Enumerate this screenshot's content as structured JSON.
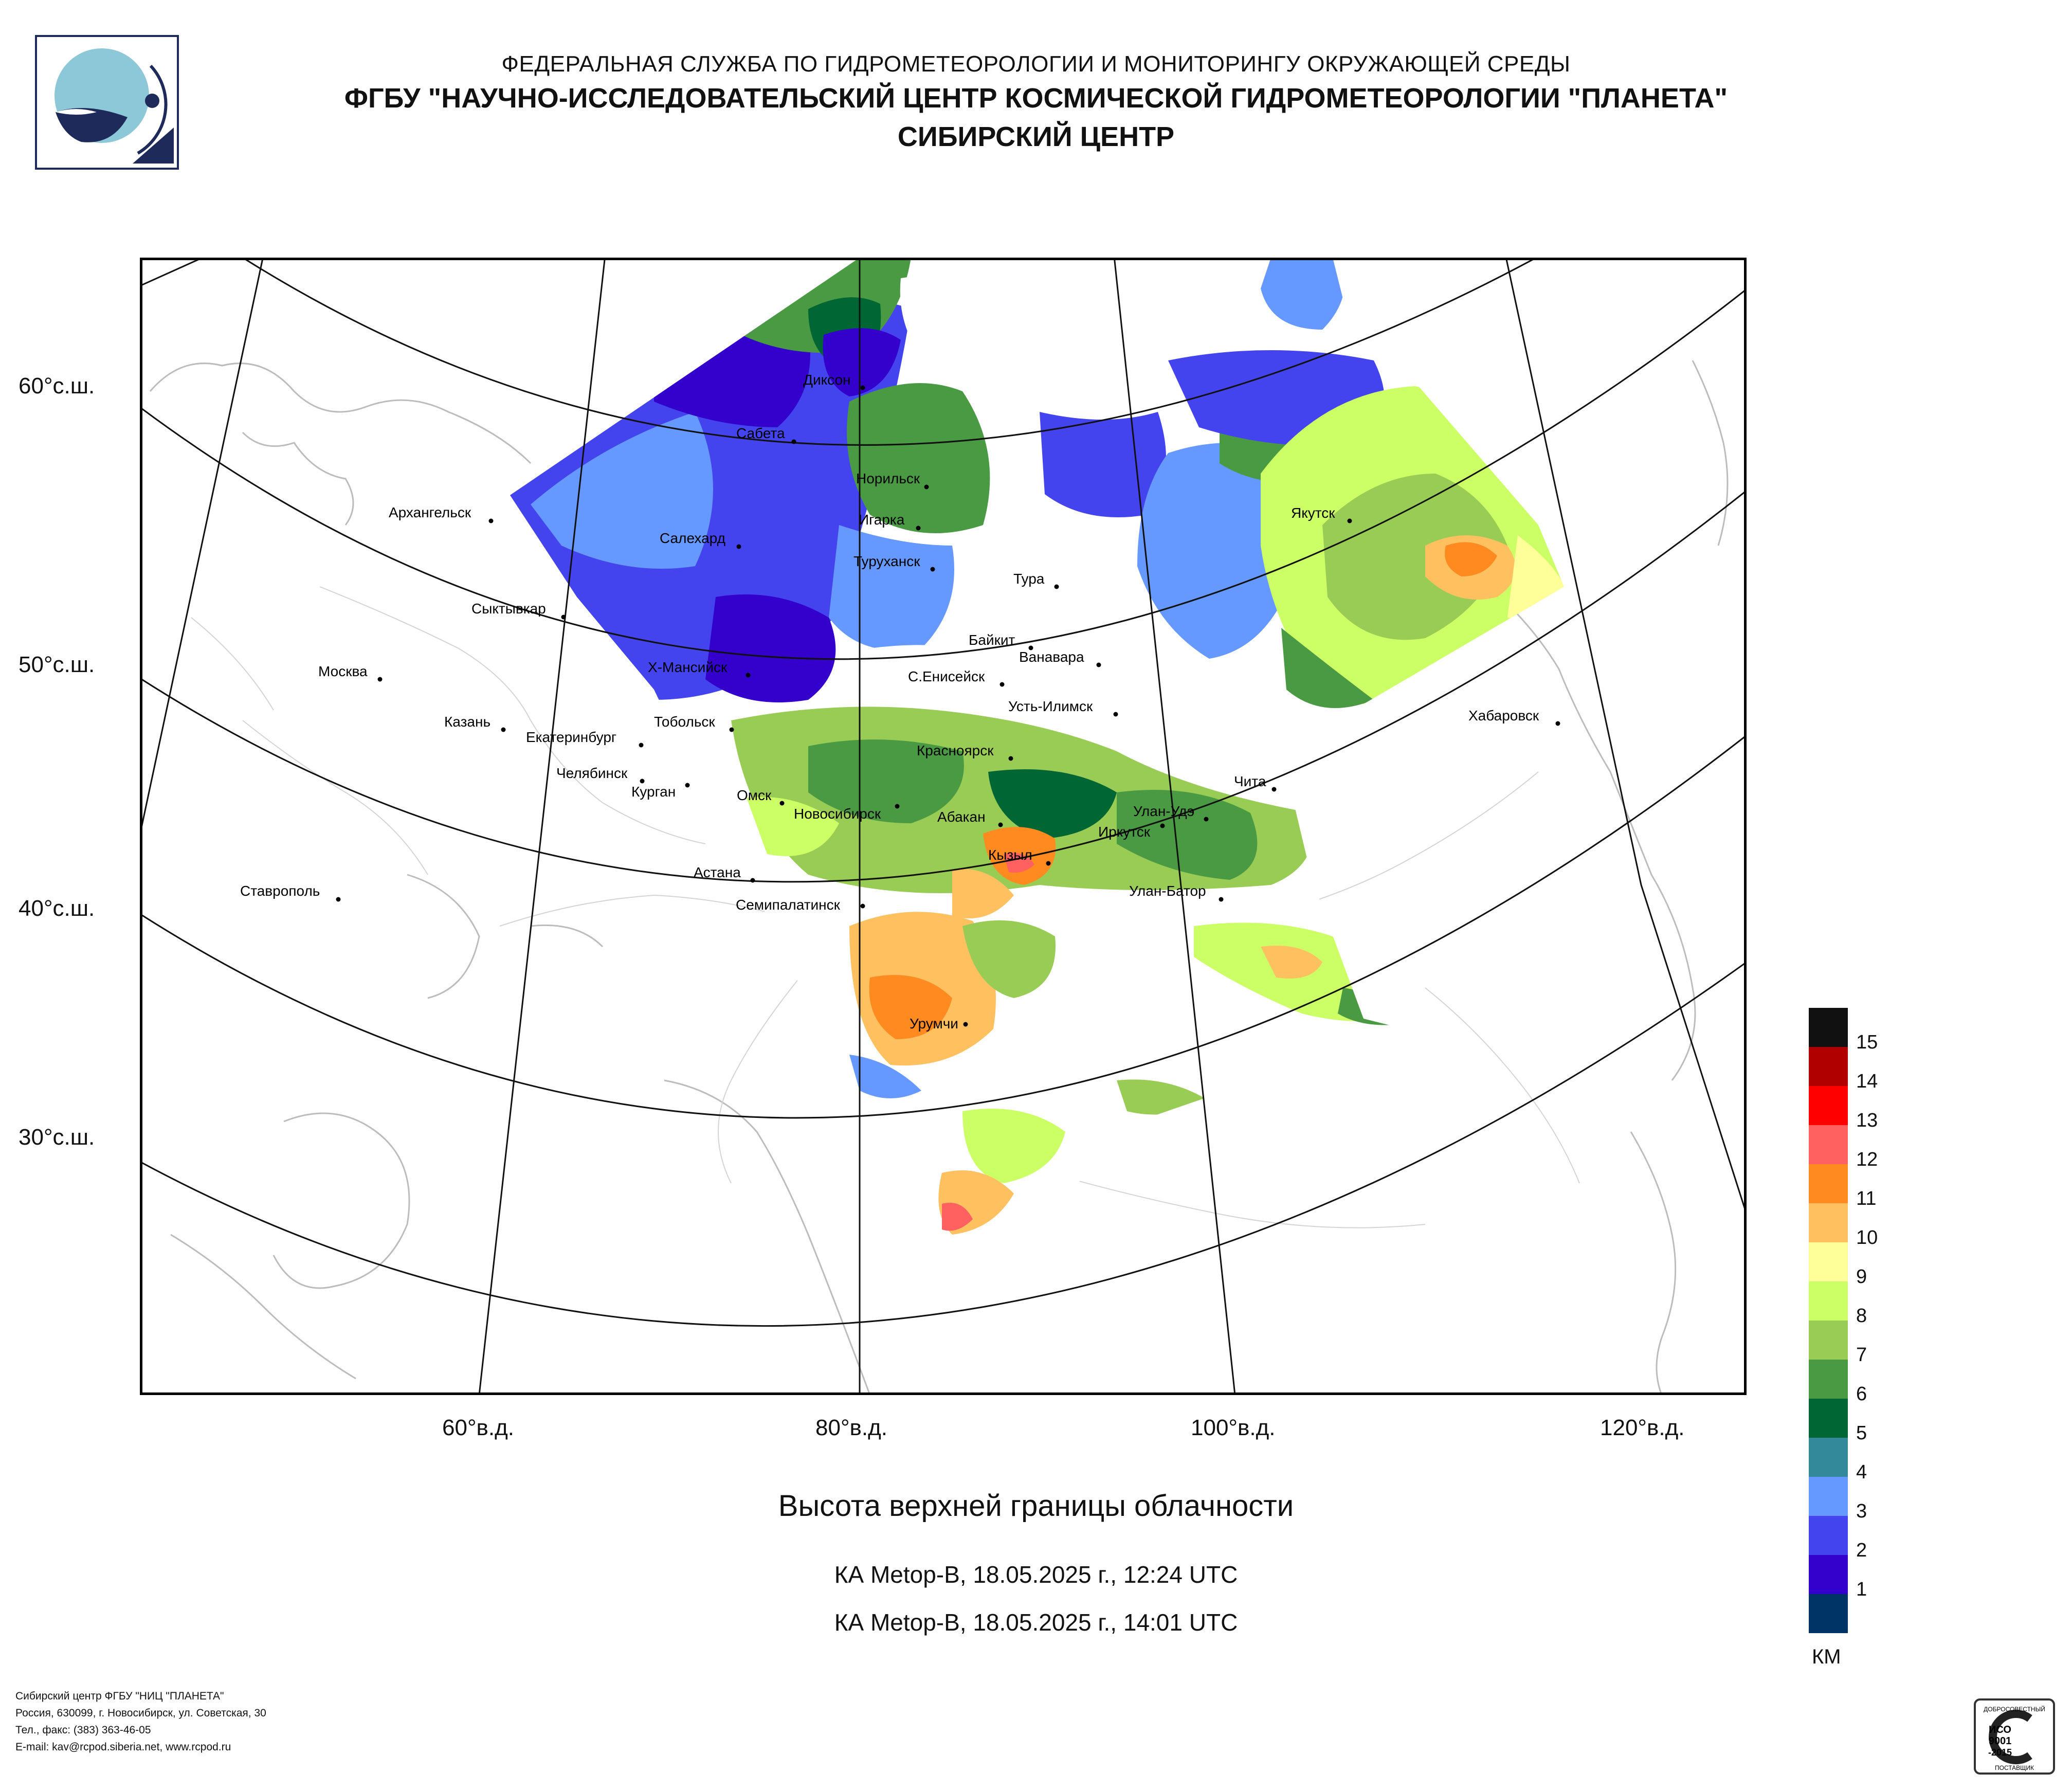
{
  "header": {
    "line1": "ФЕДЕРАЛЬНАЯ СЛУЖБА ПО ГИДРОМЕТЕОРОЛОГИИ И МОНИТОРИНГУ ОКРУЖАЮЩЕЙ СРЕДЫ",
    "line2": "ФГБУ \"НАУЧНО-ИССЛЕДОВАТЕЛЬСКИЙ ЦЕНТР КОСМИЧЕСКОЙ ГИДРОМЕТЕОРОЛОГИИ \"ПЛАНЕТА\"",
    "line3": "СИБИРСКИЙ ЦЕНТР"
  },
  "map": {
    "lat_labels": [
      "60°с.ш.",
      "50°с.ш.",
      "40°с.ш.",
      "30°с.ш."
    ],
    "lon_labels": [
      "60°в.д.",
      "80°в.д.",
      "100°в.д.",
      "120°в.д."
    ],
    "cities": [
      {
        "name": "Диксон"
      },
      {
        "name": "Сабета"
      },
      {
        "name": "Норильск"
      },
      {
        "name": "Архангельск"
      },
      {
        "name": "Игарка"
      },
      {
        "name": "Салехард"
      },
      {
        "name": "Туруханск"
      },
      {
        "name": "Тура"
      },
      {
        "name": "Якутск"
      },
      {
        "name": "Сыктывкар"
      },
      {
        "name": "Байкит"
      },
      {
        "name": "Ванавара"
      },
      {
        "name": "Москва"
      },
      {
        "name": "Х-Мансийск"
      },
      {
        "name": "С.Енисейск"
      },
      {
        "name": "Усть-Илимск"
      },
      {
        "name": "Казань"
      },
      {
        "name": "Тобольск"
      },
      {
        "name": "Хабаровск"
      },
      {
        "name": "Екатеринбург"
      },
      {
        "name": "Красноярск"
      },
      {
        "name": "Челябинск"
      },
      {
        "name": "Курган"
      },
      {
        "name": "Чита"
      },
      {
        "name": "Омск"
      },
      {
        "name": "Новосибирск"
      },
      {
        "name": "Абакан"
      },
      {
        "name": "Улан-Удэ"
      },
      {
        "name": "Иркутск"
      },
      {
        "name": "Кызыл"
      },
      {
        "name": "Астана"
      },
      {
        "name": "Улан-Батор"
      },
      {
        "name": "Ставрополь"
      },
      {
        "name": "Семипалатинск"
      },
      {
        "name": "Урумчи"
      }
    ]
  },
  "title": "Высота верхней границы облачности",
  "satellite_passes": [
    "КА Metop-B, 18.05.2025 г., 12:24 UTC",
    "КА Metop-B, 18.05.2025 г., 14:01 UTC"
  ],
  "legend": {
    "unit": "КМ",
    "items": [
      {
        "label": "15",
        "color": "#111111"
      },
      {
        "label": "14",
        "color": "#b00000"
      },
      {
        "label": "13",
        "color": "#ff0000"
      },
      {
        "label": "12",
        "color": "#ff6060"
      },
      {
        "label": "11",
        "color": "#ff8a20"
      },
      {
        "label": "10",
        "color": "#ffc060"
      },
      {
        "label": "9",
        "color": "#ffff99"
      },
      {
        "label": "8",
        "color": "#ccff66"
      },
      {
        "label": "7",
        "color": "#99cc55"
      },
      {
        "label": "6",
        "color": "#4a9a44"
      },
      {
        "label": "5",
        "color": "#006633"
      },
      {
        "label": "4",
        "color": "#338899"
      },
      {
        "label": "3",
        "color": "#6699ff"
      },
      {
        "label": "2",
        "color": "#4444ee"
      },
      {
        "label": "1",
        "color": "#3300cc"
      },
      {
        "label": "",
        "color": "#003366"
      }
    ]
  },
  "footer": {
    "line1": "Сибирский центр ФГБУ \"НИЦ \"ПЛАНЕТА\"",
    "line2": "Россия, 630099, г. Новосибирск, ул. Советская, 30",
    "line3": "Тел., факс: (383) 363-46-05",
    "line4": "E-mail: kav@rcpod.siberia.net, www.rcpod.ru"
  },
  "iso_badge": {
    "top": "ДОБРОСОВЕСТНЫЙ",
    "mid1": "ИСО",
    "mid2": "9001",
    "mid3": "-2015",
    "bottom": "ПОСТАВЩИК"
  }
}
